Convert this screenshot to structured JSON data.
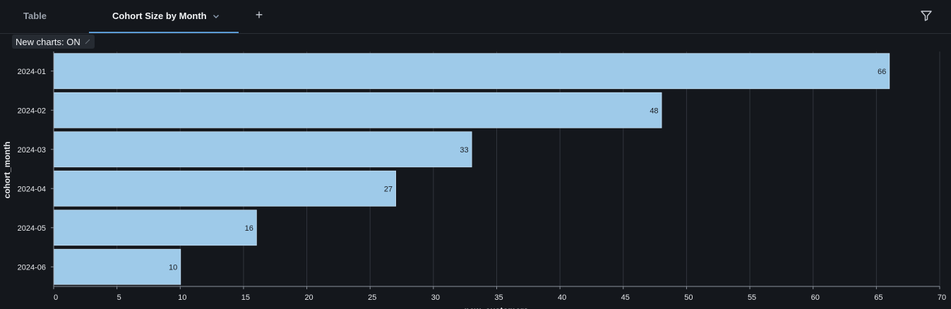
{
  "tabs": {
    "table_label": "Table",
    "active_label": "Cohort Size by Month",
    "add_label": "+"
  },
  "toggle": {
    "label": "New charts: ON"
  },
  "icons": {
    "chevron": "chevron-down-icon",
    "filter": "filter-icon",
    "add": "plus-icon",
    "edit": "pencil-icon"
  },
  "colors": {
    "background": "#14171c",
    "bar_fill": "#9ecae9",
    "accent": "#5b9bd5",
    "grid": "#30353d"
  },
  "chart_data": {
    "type": "bar",
    "orientation": "horizontal",
    "categories": [
      "2024-01",
      "2024-02",
      "2024-03",
      "2024-04",
      "2024-05",
      "2024-06"
    ],
    "values": [
      66,
      48,
      33,
      27,
      16,
      10
    ],
    "xlabel": "new_customers",
    "ylabel": "cohort_month",
    "xlim": [
      0,
      70
    ],
    "xticks": [
      0,
      5,
      10,
      15,
      20,
      25,
      30,
      35,
      40,
      45,
      50,
      55,
      60,
      65,
      70
    ],
    "grid": true,
    "data_labels": true
  }
}
